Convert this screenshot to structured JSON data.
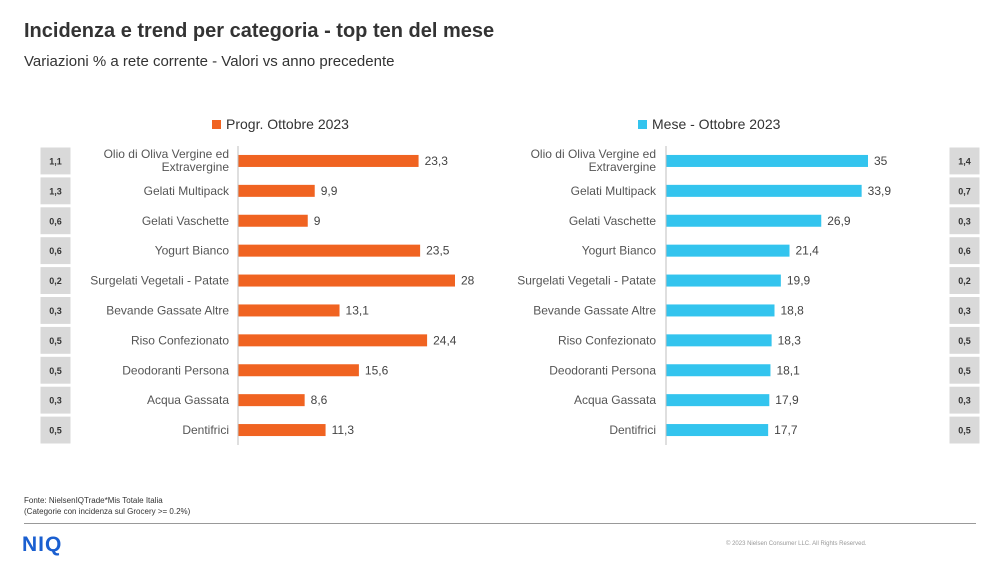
{
  "title": "Incidenza e trend per categoria - top ten del mese",
  "subtitle": "Variazioni  % a rete corrente - Valori vs anno precedente",
  "colors": {
    "left_bar": "#f06321",
    "right_bar": "#33c4ee",
    "box": "#d9d9d9"
  },
  "chart_data": [
    {
      "type": "bar",
      "orientation": "horizontal",
      "series": [
        {
          "name": "Progr. Ottobre 2023",
          "values": [
            23.3,
            9.9,
            9,
            23.5,
            28,
            13.1,
            24.4,
            15.6,
            8.6,
            11.3
          ]
        }
      ],
      "categories": [
        "Olio di Oliva Vergine ed Extravergine",
        "Gelati Multipack",
        "Gelati Vaschette",
        "Yogurt Bianco",
        "Surgelati Vegetali - Patate",
        "Bevande Gassate Altre",
        "Riso Confezionato",
        "Deodoranti Persona",
        "Acqua Gassata",
        "Dentifrici"
      ],
      "value_labels": [
        "23,3",
        "9,9",
        "9",
        "23,5",
        "28",
        "13,1",
        "24,4",
        "15,6",
        "8,6",
        "11,3"
      ],
      "side_values": [
        "1,1",
        "1,3",
        "0,6",
        "0,6",
        "0,2",
        "0,3",
        "0,5",
        "0,5",
        "0,3",
        "0,5"
      ],
      "xlim": [
        0,
        30
      ],
      "legend": "top"
    },
    {
      "type": "bar",
      "orientation": "horizontal",
      "series": [
        {
          "name": "Mese - Ottobre 2023",
          "values": [
            35,
            33.9,
            26.9,
            21.4,
            19.9,
            18.8,
            18.3,
            18.1,
            17.9,
            17.7
          ]
        }
      ],
      "categories": [
        "Olio di Oliva Vergine ed Extravergine",
        "Gelati Multipack",
        "Gelati Vaschette",
        "Yogurt Bianco",
        "Surgelati Vegetali - Patate",
        "Bevande Gassate Altre",
        "Riso Confezionato",
        "Deodoranti Persona",
        "Acqua Gassata",
        "Dentifrici"
      ],
      "value_labels": [
        "35",
        "33,9",
        "26,9",
        "21,4",
        "19,9",
        "18,8",
        "18,3",
        "18,1",
        "17,9",
        "17,7"
      ],
      "side_values": [
        "1,4",
        "0,7",
        "0,3",
        "0,6",
        "0,2",
        "0,3",
        "0,5",
        "0,5",
        "0,3",
        "0,5"
      ],
      "xlim": [
        0,
        35
      ],
      "legend": "top"
    }
  ],
  "footer": {
    "source_line1": "Fonte: NielsenIQTrade*Mis Totale Italia",
    "source_line2": "(Categorie con incidenza sul Grocery >= 0.2%)",
    "logo": "NIQ",
    "copyright": "© 2023  Nielsen Consumer LLC. All Rights Reserved."
  }
}
